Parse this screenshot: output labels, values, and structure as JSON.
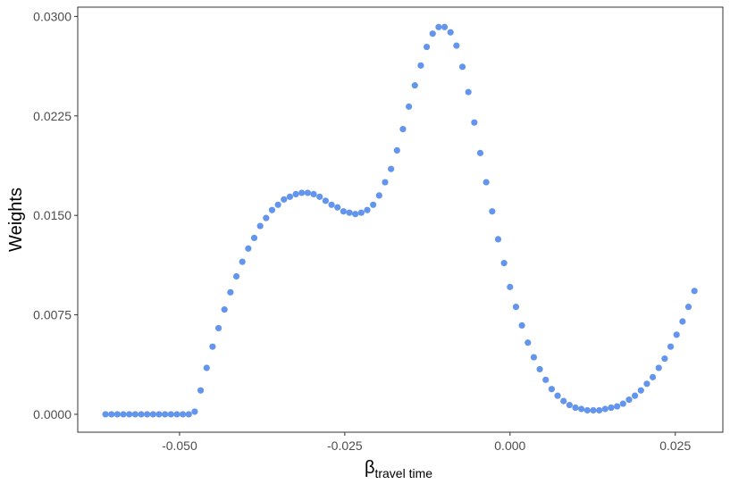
{
  "chart_data": {
    "type": "scatter",
    "xlabel": "β",
    "xlabel_subscript": "travel time",
    "ylabel": "Weights",
    "color": "#6495ed",
    "xlim": [
      -0.0654,
      0.0322
    ],
    "ylim": [
      -0.00135,
      0.0307
    ],
    "xticks": [
      {
        "value": -0.05,
        "label": "-0.050"
      },
      {
        "value": -0.025,
        "label": "-0.025"
      },
      {
        "value": 0,
        "label": "0.000"
      },
      {
        "value": 0.025,
        "label": "0.025"
      }
    ],
    "yticks": [
      {
        "value": 0,
        "label": "0.0000"
      },
      {
        "value": 0.0075,
        "label": "0.0075"
      },
      {
        "value": 0.015,
        "label": "0.0150"
      },
      {
        "value": 0.0225,
        "label": "0.0225"
      },
      {
        "value": 0.03,
        "label": "0.0300"
      }
    ],
    "x": [
      -0.0612,
      -0.0603,
      -0.0594,
      -0.0585,
      -0.0576,
      -0.0567,
      -0.0558,
      -0.0549,
      -0.054,
      -0.0531,
      -0.0522,
      -0.0513,
      -0.0504,
      -0.0495,
      -0.0486,
      -0.0477,
      -0.0468,
      -0.0459,
      -0.045,
      -0.0441,
      -0.0432,
      -0.0423,
      -0.0414,
      -0.0405,
      -0.0396,
      -0.0387,
      -0.0378,
      -0.0369,
      -0.036,
      -0.0351,
      -0.0342,
      -0.0333,
      -0.0324,
      -0.0315,
      -0.0306,
      -0.0297,
      -0.0288,
      -0.0279,
      -0.027,
      -0.0261,
      -0.0252,
      -0.0243,
      -0.0234,
      -0.0225,
      -0.0216,
      -0.0207,
      -0.0198,
      -0.0189,
      -0.018,
      -0.0171,
      -0.0162,
      -0.0153,
      -0.0144,
      -0.0135,
      -0.0126,
      -0.0117,
      -0.0108,
      -0.0099,
      -0.009,
      -0.0081,
      -0.0072,
      -0.0063,
      -0.0054,
      -0.0045,
      -0.0036,
      -0.0027,
      -0.0018,
      -0.0009,
      0,
      0.0009,
      0.0018,
      0.0027,
      0.0036,
      0.0045,
      0.0054,
      0.0063,
      0.0072,
      0.0081,
      0.009,
      0.0099,
      0.0108,
      0.0117,
      0.0126,
      0.0135,
      0.0144,
      0.0153,
      0.0162,
      0.0171,
      0.018,
      0.0189,
      0.0198,
      0.0207,
      0.0216,
      0.0225,
      0.0234,
      0.0243,
      0.0252,
      0.0261,
      0.027,
      0.0279
    ],
    "values": [
      0,
      0,
      0,
      0,
      0,
      0,
      0,
      0,
      0,
      0,
      0,
      0,
      0,
      0,
      0,
      0.0002,
      0.0018,
      0.0035,
      0.0051,
      0.0065,
      0.0079,
      0.0092,
      0.0104,
      0.0115,
      0.0125,
      0.0133,
      0.0142,
      0.0148,
      0.0154,
      0.0158,
      0.0162,
      0.0164,
      0.0166,
      0.0167,
      0.0167,
      0.0166,
      0.0164,
      0.0161,
      0.0158,
      0.0156,
      0.0153,
      0.0152,
      0.0151,
      0.0152,
      0.0154,
      0.0158,
      0.0165,
      0.0175,
      0.0185,
      0.0199,
      0.0215,
      0.0232,
      0.0248,
      0.0263,
      0.0277,
      0.0287,
      0.0292,
      0.0292,
      0.0288,
      0.0278,
      0.0262,
      0.0243,
      0.022,
      0.0197,
      0.0175,
      0.0153,
      0.0132,
      0.0114,
      0.0096,
      0.0081,
      0.0067,
      0.0054,
      0.0043,
      0.0034,
      0.0026,
      0.0019,
      0.0014,
      0.001,
      0.0007,
      0.0005,
      0.0004,
      0.0003,
      0.0003,
      0.0003,
      0.0004,
      0.0005,
      0.0006,
      0.0008,
      0.0011,
      0.0014,
      0.0018,
      0.0023,
      0.0028,
      0.0035,
      0.0042,
      0.0051,
      0.006,
      0.007,
      0.0081,
      0.0093
    ]
  }
}
